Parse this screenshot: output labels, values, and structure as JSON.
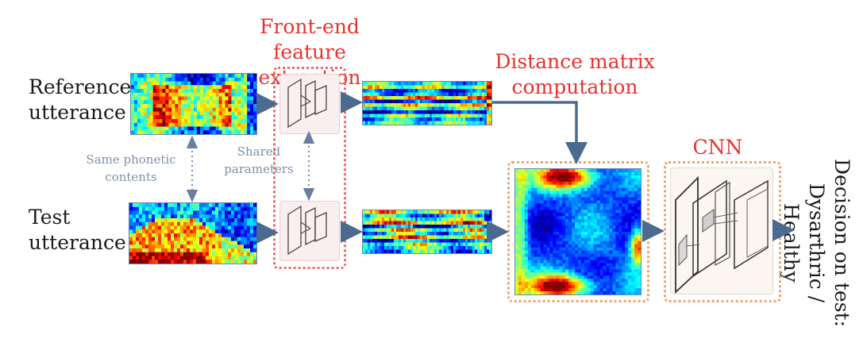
{
  "labels": {
    "reference_line1": "Reference",
    "reference_line2": "utterance",
    "test_line1": "Test",
    "test_line2": "utterance",
    "frontend_line1": "Front-end",
    "frontend_line2": "feature extraction",
    "distance_line1": "Distance matrix",
    "distance_line2": "computation",
    "cnn": "CNN",
    "same_phonetic_line1": "Same phonetic",
    "same_phonetic_line2": "contents",
    "shared_line1": "Shared",
    "shared_line2": "parameters",
    "decision_line1": "Decision on test:",
    "decision_line2": "Dysarthric / Healthy"
  },
  "colors": {
    "red_label": "#e8332e",
    "gray_label": "#7f8fa8",
    "arrow": "#4a6a8f",
    "frontend_box_border": "#ef6a6a",
    "frontend_inner_fill": "#fbeeee",
    "orange_box_border": "#f0a36a",
    "cnn_inner_fill": "#fbf6ef"
  }
}
